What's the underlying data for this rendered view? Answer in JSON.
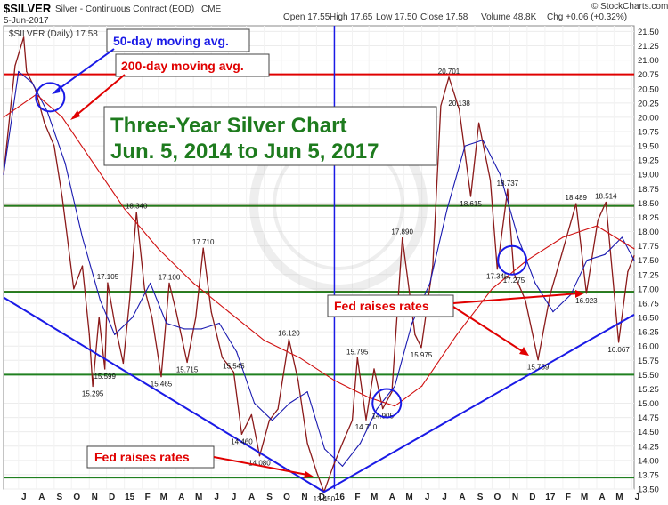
{
  "header": {
    "symbol": "$SILVER",
    "description": "Silver - Continuous Contract (EOD)",
    "exchange": "CME",
    "date": "5-Jun-2017",
    "open": "Open 17.55",
    "high": "High 17.65",
    "low": "Low 17.50",
    "close": "Close 17.58",
    "volume": "Volume 48.8K",
    "change": "Chg +0.06 (+0.32%)",
    "source": "© StockCharts.com",
    "legend": "$SILVER (Daily) 17.58"
  },
  "annotations": {
    "ma50": "50-day moving avg.",
    "ma200": "200-day moving avg.",
    "title_line1": "Three-Year Silver Chart",
    "title_line2": "Jun. 5, 2014 to Jun 5, 2017",
    "fed1": "Fed raises rates",
    "fed2": "Fed raises rates"
  },
  "colors": {
    "price": "#8b1a1a",
    "ma50": "#1a1ab0",
    "ma200": "#d01010",
    "res_red": "#e00000",
    "sup_green": "#208020",
    "trend_blue": "#1a1ae6",
    "title_green": "#1e7b1e"
  },
  "chart_data": {
    "type": "line",
    "title": "Three-Year Silver Chart",
    "subtitle": "Jun. 5, 2014 to Jun 5, 2017",
    "ylabel": "",
    "xlabel": "",
    "ylim": [
      13.5,
      21.6
    ],
    "yticks": [
      13.5,
      13.75,
      14.0,
      14.25,
      14.5,
      14.75,
      15.0,
      15.25,
      15.5,
      15.75,
      16.0,
      16.25,
      16.5,
      16.75,
      17.0,
      17.25,
      17.5,
      17.75,
      18.0,
      18.25,
      18.5,
      18.75,
      19.0,
      19.25,
      19.5,
      19.75,
      20.0,
      20.25,
      20.5,
      20.75,
      21.0,
      21.25,
      21.5
    ],
    "x_axis": [
      {
        "label": "J",
        "date": "2014-07-01"
      },
      {
        "label": "A",
        "date": "2014-08-01"
      },
      {
        "label": "S",
        "date": "2014-09-01"
      },
      {
        "label": "O",
        "date": "2014-10-01"
      },
      {
        "label": "N",
        "date": "2014-11-01"
      },
      {
        "label": "D",
        "date": "2014-12-01"
      },
      {
        "label": "15",
        "date": "2015-01-01"
      },
      {
        "label": "F",
        "date": "2015-02-01"
      },
      {
        "label": "M",
        "date": "2015-03-01"
      },
      {
        "label": "A",
        "date": "2015-04-01"
      },
      {
        "label": "M",
        "date": "2015-05-01"
      },
      {
        "label": "J",
        "date": "2015-06-01"
      },
      {
        "label": "J",
        "date": "2015-07-01"
      },
      {
        "label": "A",
        "date": "2015-08-01"
      },
      {
        "label": "S",
        "date": "2015-09-01"
      },
      {
        "label": "O",
        "date": "2015-10-01"
      },
      {
        "label": "N",
        "date": "2015-11-01"
      },
      {
        "label": "D",
        "date": "2015-12-01"
      },
      {
        "label": "16",
        "date": "2016-01-01"
      },
      {
        "label": "F",
        "date": "2016-02-01"
      },
      {
        "label": "M",
        "date": "2016-03-01"
      },
      {
        "label": "A",
        "date": "2016-04-01"
      },
      {
        "label": "M",
        "date": "2016-05-01"
      },
      {
        "label": "J",
        "date": "2016-06-01"
      },
      {
        "label": "J",
        "date": "2016-07-01"
      },
      {
        "label": "A",
        "date": "2016-08-01"
      },
      {
        "label": "S",
        "date": "2016-09-01"
      },
      {
        "label": "O",
        "date": "2016-10-01"
      },
      {
        "label": "N",
        "date": "2016-11-01"
      },
      {
        "label": "D",
        "date": "2016-12-01"
      },
      {
        "label": "17",
        "date": "2017-01-01"
      },
      {
        "label": "F",
        "date": "2017-02-01"
      },
      {
        "label": "M",
        "date": "2017-03-01"
      },
      {
        "label": "A",
        "date": "2017-04-01"
      },
      {
        "label": "M",
        "date": "2017-05-01"
      },
      {
        "label": "J",
        "date": "2017-06-01"
      }
    ],
    "series": [
      {
        "name": "$SILVER (Daily)",
        "points": [
          [
            "2014-06-05",
            19.0
          ],
          [
            "2014-06-25",
            20.9
          ],
          [
            "2014-07-10",
            21.4
          ],
          [
            "2014-07-15",
            20.8
          ],
          [
            "2014-07-30",
            20.5
          ],
          [
            "2014-08-15",
            19.9
          ],
          [
            "2014-09-01",
            19.5
          ],
          [
            "2014-09-15",
            18.6
          ],
          [
            "2014-10-05",
            17.0
          ],
          [
            "2014-10-20",
            17.4
          ],
          [
            "2014-11-01",
            16.2
          ],
          [
            "2014-11-07",
            15.295
          ],
          [
            "2014-11-18",
            16.5
          ],
          [
            "2014-11-28",
            15.599
          ],
          [
            "2014-12-03",
            17.105
          ],
          [
            "2014-12-15",
            16.4
          ],
          [
            "2014-12-30",
            15.7
          ],
          [
            "2015-01-10",
            16.8
          ],
          [
            "2015-01-22",
            18.34
          ],
          [
            "2015-02-05",
            17.0
          ],
          [
            "2015-02-18",
            16.5
          ],
          [
            "2015-03-06",
            15.465
          ],
          [
            "2015-03-20",
            17.1
          ],
          [
            "2015-04-01",
            16.6
          ],
          [
            "2015-04-20",
            15.715
          ],
          [
            "2015-05-05",
            16.5
          ],
          [
            "2015-05-18",
            17.71
          ],
          [
            "2015-06-01",
            16.6
          ],
          [
            "2015-06-20",
            15.8
          ],
          [
            "2015-07-10",
            15.545
          ],
          [
            "2015-07-24",
            14.46
          ],
          [
            "2015-08-10",
            14.8
          ],
          [
            "2015-08-24",
            14.08
          ],
          [
            "2015-09-10",
            14.7
          ],
          [
            "2015-09-25",
            14.9
          ],
          [
            "2015-10-14",
            16.12
          ],
          [
            "2015-10-30",
            15.4
          ],
          [
            "2015-11-15",
            14.3
          ],
          [
            "2015-12-01",
            13.8
          ],
          [
            "2015-12-14",
            13.45
          ],
          [
            "2015-12-30",
            13.9
          ],
          [
            "2016-01-15",
            14.3
          ],
          [
            "2016-02-01",
            14.7
          ],
          [
            "2016-02-10",
            15.795
          ],
          [
            "2016-02-25",
            14.71
          ],
          [
            "2016-03-10",
            15.6
          ],
          [
            "2016-03-25",
            14.905
          ],
          [
            "2016-04-10",
            15.2
          ],
          [
            "2016-04-28",
            17.89
          ],
          [
            "2016-05-20",
            16.2
          ],
          [
            "2016-05-31",
            15.975
          ],
          [
            "2016-06-20",
            17.4
          ],
          [
            "2016-07-04",
            20.2
          ],
          [
            "2016-07-18",
            20.701
          ],
          [
            "2016-08-05",
            20.138
          ],
          [
            "2016-08-25",
            18.615
          ],
          [
            "2016-09-08",
            19.9
          ],
          [
            "2016-09-28",
            18.9
          ],
          [
            "2016-10-10",
            17.345
          ],
          [
            "2016-10-28",
            18.737
          ],
          [
            "2016-11-08",
            17.275
          ],
          [
            "2016-11-28",
            16.8
          ],
          [
            "2016-12-20",
            15.759
          ],
          [
            "2017-01-10",
            16.9
          ],
          [
            "2017-01-30",
            17.6
          ],
          [
            "2017-02-24",
            18.489
          ],
          [
            "2017-03-14",
            16.923
          ],
          [
            "2017-04-03",
            18.2
          ],
          [
            "2017-04-17",
            18.514
          ],
          [
            "2017-05-09",
            16.067
          ],
          [
            "2017-05-25",
            17.3
          ],
          [
            "2017-06-05",
            17.58
          ]
        ]
      },
      {
        "name": "50-day moving avg.",
        "points": [
          [
            "2014-06-05",
            19.0
          ],
          [
            "2014-07-01",
            20.8
          ],
          [
            "2014-07-25",
            20.6
          ],
          [
            "2014-08-20",
            20.1
          ],
          [
            "2014-09-20",
            19.2
          ],
          [
            "2014-10-20",
            17.9
          ],
          [
            "2014-11-20",
            16.8
          ],
          [
            "2014-12-15",
            16.2
          ],
          [
            "2015-01-15",
            16.5
          ],
          [
            "2015-02-15",
            17.1
          ],
          [
            "2015-03-15",
            16.4
          ],
          [
            "2015-04-15",
            16.3
          ],
          [
            "2015-05-15",
            16.3
          ],
          [
            "2015-06-15",
            16.4
          ],
          [
            "2015-07-15",
            15.9
          ],
          [
            "2015-08-15",
            15.0
          ],
          [
            "2015-09-15",
            14.7
          ],
          [
            "2015-10-15",
            15.0
          ],
          [
            "2015-11-15",
            15.2
          ],
          [
            "2015-12-15",
            14.2
          ],
          [
            "2016-01-15",
            13.9
          ],
          [
            "2016-02-15",
            14.3
          ],
          [
            "2016-03-15",
            14.9
          ],
          [
            "2016-04-15",
            15.3
          ],
          [
            "2016-05-15",
            16.4
          ],
          [
            "2016-06-15",
            17.1
          ],
          [
            "2016-07-15",
            18.4
          ],
          [
            "2016-08-15",
            19.5
          ],
          [
            "2016-09-15",
            19.6
          ],
          [
            "2016-10-15",
            19.0
          ],
          [
            "2016-11-15",
            17.9
          ],
          [
            "2016-12-15",
            17.1
          ],
          [
            "2017-01-15",
            16.6
          ],
          [
            "2017-02-15",
            16.9
          ],
          [
            "2017-03-15",
            17.5
          ],
          [
            "2017-04-15",
            17.6
          ],
          [
            "2017-05-15",
            17.9
          ],
          [
            "2017-06-05",
            17.5
          ]
        ]
      },
      {
        "name": "200-day moving avg.",
        "points": [
          [
            "2014-06-05",
            20.0
          ],
          [
            "2014-08-01",
            20.4
          ],
          [
            "2014-09-15",
            20.0
          ],
          [
            "2014-11-01",
            19.3
          ],
          [
            "2015-01-01",
            18.4
          ],
          [
            "2015-03-01",
            17.7
          ],
          [
            "2015-05-01",
            17.1
          ],
          [
            "2015-07-01",
            16.6
          ],
          [
            "2015-09-01",
            16.1
          ],
          [
            "2015-11-01",
            15.8
          ],
          [
            "2016-01-01",
            15.4
          ],
          [
            "2016-03-01",
            15.1
          ],
          [
            "2016-04-15",
            14.95
          ],
          [
            "2016-06-01",
            15.3
          ],
          [
            "2016-08-01",
            16.2
          ],
          [
            "2016-10-01",
            17.0
          ],
          [
            "2016-12-01",
            17.5
          ],
          [
            "2017-02-01",
            17.9
          ],
          [
            "2017-04-01",
            18.1
          ],
          [
            "2017-06-05",
            17.7
          ]
        ]
      }
    ],
    "price_labels": [
      {
        "date": "2014-11-07",
        "value": 15.295,
        "text": "15.295",
        "pos": "below"
      },
      {
        "date": "2014-11-28",
        "value": 15.599,
        "text": "15.599",
        "pos": "below"
      },
      {
        "date": "2014-12-03",
        "value": 17.105,
        "text": "17.105",
        "pos": "above"
      },
      {
        "date": "2015-01-22",
        "value": 18.34,
        "text": "18.340",
        "pos": "above"
      },
      {
        "date": "2015-03-06",
        "value": 15.465,
        "text": "15.465",
        "pos": "below"
      },
      {
        "date": "2015-03-20",
        "value": 17.1,
        "text": "17.100",
        "pos": "above"
      },
      {
        "date": "2015-04-20",
        "value": 15.715,
        "text": "15.715",
        "pos": "below"
      },
      {
        "date": "2015-05-18",
        "value": 17.71,
        "text": "17.710",
        "pos": "above"
      },
      {
        "date": "2015-07-10",
        "value": 15.545,
        "text": "15.545",
        "pos": "above"
      },
      {
        "date": "2015-07-24",
        "value": 14.46,
        "text": "14.460",
        "pos": "below"
      },
      {
        "date": "2015-08-24",
        "value": 14.08,
        "text": "14.080",
        "pos": "below"
      },
      {
        "date": "2015-10-14",
        "value": 16.12,
        "text": "16.120",
        "pos": "above"
      },
      {
        "date": "2015-12-14",
        "value": 13.45,
        "text": "13.450",
        "pos": "below"
      },
      {
        "date": "2016-02-10",
        "value": 15.795,
        "text": "15.795",
        "pos": "above"
      },
      {
        "date": "2016-02-25",
        "value": 14.71,
        "text": "14.710",
        "pos": "below"
      },
      {
        "date": "2016-03-25",
        "value": 14.905,
        "text": "14.905",
        "pos": "below"
      },
      {
        "date": "2016-04-28",
        "value": 17.89,
        "text": "17.890",
        "pos": "above"
      },
      {
        "date": "2016-05-31",
        "value": 15.975,
        "text": "15.975",
        "pos": "below"
      },
      {
        "date": "2016-07-18",
        "value": 20.701,
        "text": "20.701",
        "pos": "above"
      },
      {
        "date": "2016-08-05",
        "value": 20.138,
        "text": "20.138",
        "pos": "above"
      },
      {
        "date": "2016-08-25",
        "value": 18.615,
        "text": "18.615",
        "pos": "below"
      },
      {
        "date": "2016-10-10",
        "value": 17.345,
        "text": "17.345",
        "pos": "below"
      },
      {
        "date": "2016-10-28",
        "value": 18.737,
        "text": "18.737",
        "pos": "above"
      },
      {
        "date": "2016-11-08",
        "value": 17.275,
        "text": "17.275",
        "pos": "below"
      },
      {
        "date": "2016-12-20",
        "value": 15.759,
        "text": "15.759",
        "pos": "below"
      },
      {
        "date": "2017-02-24",
        "value": 18.489,
        "text": "18.489",
        "pos": "above"
      },
      {
        "date": "2017-03-14",
        "value": 16.923,
        "text": "16.923",
        "pos": "below"
      },
      {
        "date": "2017-04-17",
        "value": 18.514,
        "text": "18.514",
        "pos": "above"
      },
      {
        "date": "2017-05-09",
        "value": 16.067,
        "text": "16.067",
        "pos": "below"
      }
    ],
    "horizontal_lines": [
      {
        "value": 20.75,
        "color": "red"
      },
      {
        "value": 18.45,
        "color": "red"
      },
      {
        "value": 16.95,
        "color": "red"
      },
      {
        "value": 18.45,
        "color": "green"
      },
      {
        "value": 16.95,
        "color": "green"
      },
      {
        "value": 15.5,
        "color": "green"
      },
      {
        "value": 13.7,
        "color": "green"
      }
    ],
    "vertical_marker": {
      "date": "2016-01-01"
    },
    "trendlines": [
      {
        "from": [
          "2014-06-05",
          16.85
        ],
        "to": [
          "2015-12-14",
          13.45
        ]
      },
      {
        "from": [
          "2015-12-14",
          13.45
        ],
        "to": [
          "2017-06-05",
          16.55
        ]
      }
    ],
    "circles": [
      {
        "date": "2014-08-25",
        "value": 20.35
      },
      {
        "date": "2016-04-01",
        "value": 15.0
      },
      {
        "date": "2016-11-05",
        "value": 17.5
      }
    ],
    "grid": true
  }
}
